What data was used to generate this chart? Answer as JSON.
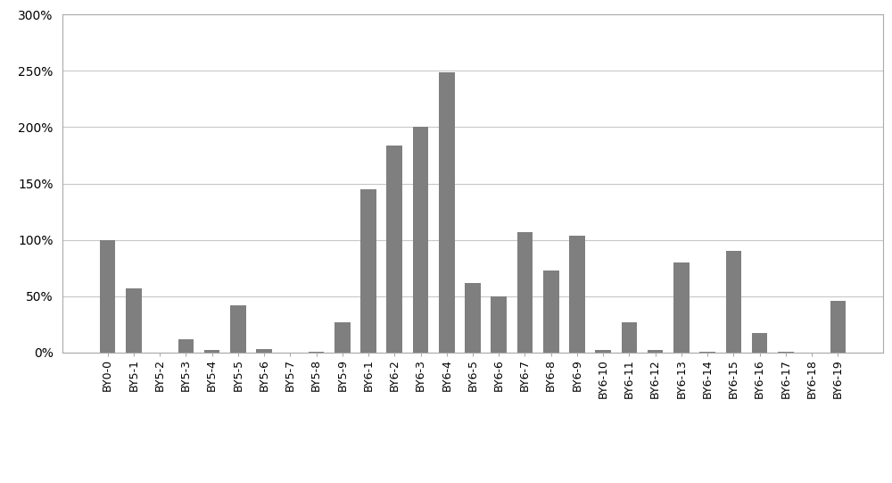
{
  "categories": [
    "BY0-0",
    "BY5-1",
    "BY5-2",
    "BY5-3",
    "BY5-4",
    "BY5-5",
    "BY5-6",
    "BY5-7",
    "BY5-8",
    "BY5-9",
    "BY6-1",
    "BY6-2",
    "BY6-3",
    "BY6-4",
    "BY6-5",
    "BY6-6",
    "BY6-7",
    "BY6-8",
    "BY6-9",
    "BY6-10",
    "BY6-11",
    "BY6-12",
    "BY6-13",
    "BY6-14",
    "BY6-15",
    "BY6-16",
    "BY6-17",
    "BY6-18",
    "BY6-19"
  ],
  "values": [
    1.0,
    0.57,
    0.0,
    0.12,
    0.02,
    0.42,
    0.03,
    0.0,
    0.01,
    0.27,
    1.45,
    1.84,
    2.0,
    2.49,
    0.62,
    0.5,
    1.07,
    0.73,
    1.04,
    0.02,
    0.27,
    0.02,
    0.8,
    0.01,
    0.9,
    0.17,
    0.01,
    0.0,
    0.46
  ],
  "bar_color": "#7f7f7f",
  "ylim": [
    0,
    3.0
  ],
  "yticks": [
    0.0,
    0.5,
    1.0,
    1.5,
    2.0,
    2.5,
    3.0
  ],
  "ytick_labels": [
    "0%",
    "50%",
    "100%",
    "150%",
    "200%",
    "250%",
    "300%"
  ],
  "background_color": "#ffffff",
  "grid_color": "#c8c8c8",
  "spine_color": "#aaaaaa",
  "figsize": [
    10.0,
    5.41
  ]
}
